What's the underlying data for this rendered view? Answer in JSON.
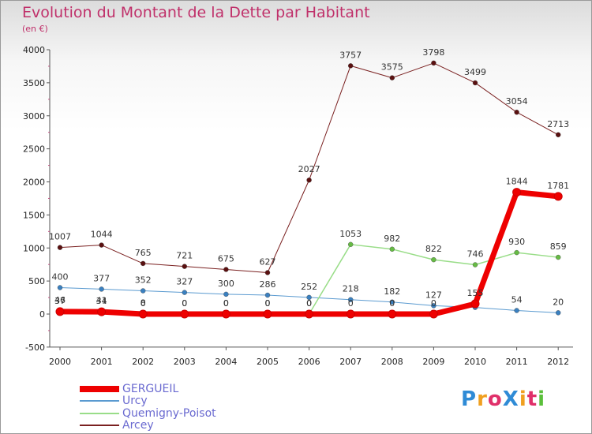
{
  "title": "Evolution du Montant de la Dette par Habitant",
  "subtitle": "(en €)",
  "logo": {
    "text": "ProXiti",
    "letters": [
      {
        "ch": "P",
        "color": "#2f8bd6"
      },
      {
        "ch": "r",
        "color": "#f0a020"
      },
      {
        "ch": "o",
        "color": "#e0306a"
      },
      {
        "ch": "X",
        "color": "#2f8bd6"
      },
      {
        "ch": "i",
        "color": "#f0a020"
      },
      {
        "ch": "t",
        "color": "#e0306a"
      },
      {
        "ch": "i",
        "color": "#5abf3a"
      }
    ]
  },
  "chart_data": {
    "type": "line",
    "title": "Evolution du Montant de la Dette par Habitant",
    "subtitle": "(en €)",
    "categories": [
      "2000",
      "2001",
      "2002",
      "2003",
      "2004",
      "2005",
      "2006",
      "2007",
      "2008",
      "2009",
      "2010",
      "2011",
      "2012"
    ],
    "ylim": [
      -500,
      4000
    ],
    "yticks": [
      -500,
      0,
      500,
      1000,
      1500,
      2000,
      2500,
      3000,
      3500,
      4000
    ],
    "grid": false,
    "legend_position": "bottom-left",
    "series": [
      {
        "name": "Arcey",
        "color": "#7a2020",
        "marker_color": "#5a1010",
        "width": 1,
        "values": [
          1007,
          1044,
          765,
          721,
          675,
          627,
          2027,
          3757,
          3575,
          3798,
          3499,
          3054,
          2713
        ],
        "labels": [
          "1007",
          "1044",
          "765",
          "721",
          "675",
          "627",
          "2027",
          "3757",
          "3575",
          "3798",
          "3499",
          "3054",
          "2713"
        ]
      },
      {
        "name": "Urcy",
        "color": "#5a9ad0",
        "marker_color": "#3a80c0",
        "width": 1,
        "values": [
          400,
          377,
          352,
          327,
          300,
          286,
          252,
          218,
          182,
          127,
          100,
          54,
          20
        ],
        "labels": [
          "400",
          "377",
          "352",
          "327",
          "300",
          "286",
          "252",
          "218",
          "182",
          "127",
          "",
          "54",
          "20"
        ]
      },
      {
        "name": "Quemigny-Poisot",
        "color": "#99dd88",
        "marker_color": "#66bb44",
        "width": 1.5,
        "values": [
          46,
          41,
          8,
          0,
          0,
          0,
          0,
          1053,
          982,
          822,
          746,
          930,
          859
        ],
        "labels": [
          "46",
          "41",
          "8",
          "0",
          "0",
          "0",
          "0",
          "1053",
          "982",
          "822",
          "746",
          "930",
          "859"
        ]
      },
      {
        "name": "GERGUEIL",
        "color": "#ee0000",
        "marker_color": "#ee0000",
        "width": 7,
        "values": [
          37,
          34,
          0,
          0,
          0,
          0,
          0,
          0,
          0,
          0,
          155,
          1844,
          1781
        ],
        "labels": [
          "37",
          "34",
          "0",
          "0",
          "0",
          "0",
          "0",
          "0",
          "0",
          "0",
          "155",
          "1844",
          "1781"
        ]
      }
    ],
    "legend": [
      "GERGUEIL",
      "Urcy",
      "Quemigny-Poisot",
      "Arcey"
    ]
  }
}
